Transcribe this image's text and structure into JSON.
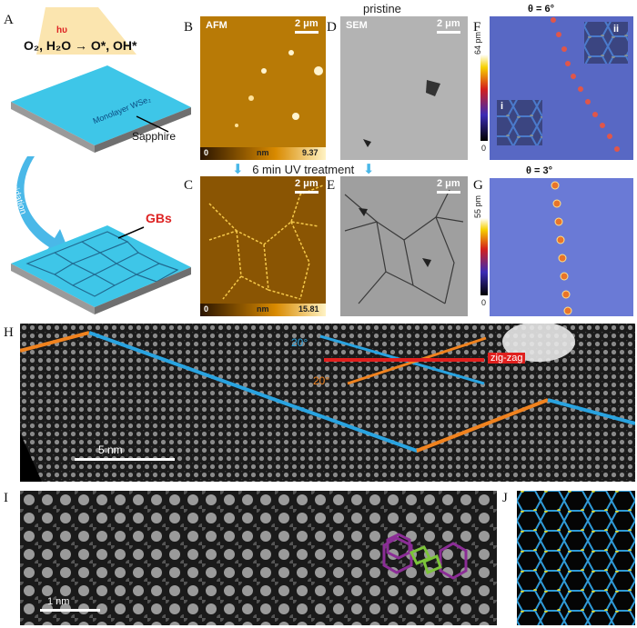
{
  "labels": {
    "A": "A",
    "B": "B",
    "C": "C",
    "D": "D",
    "E": "E",
    "F": "F",
    "G": "G",
    "H": "H",
    "I": "I",
    "J": "J"
  },
  "schematic": {
    "reaction_reactants": "O₂, H₂O",
    "light": "hυ",
    "reaction_products": "O*, OH*",
    "monolayer": "Monolayer WSe₂",
    "substrate": "Sapphire",
    "arrow_text": "Oxidation",
    "gb": "GBs"
  },
  "header": {
    "pristine": "pristine",
    "uv": "6 min UV treatment"
  },
  "afm_top": {
    "tag": "AFM",
    "scale": "2 μm",
    "cbar_min": "0",
    "cbar_unit": "nm",
    "cbar_max": "9.37"
  },
  "afm_bottom": {
    "scale": "2 μm",
    "cbar_min": "0",
    "cbar_unit": "nm",
    "cbar_max": "15.81"
  },
  "sem_top": {
    "tag": "SEM",
    "scale": "2 μm"
  },
  "sem_bottom": {
    "scale": "2 μm"
  },
  "stm_f": {
    "title": "θ = 6°",
    "cbar_max": "64 pm",
    "cbar_min": "0",
    "inset1": "i",
    "inset2": "ii"
  },
  "stm_g": {
    "title": "θ = 3°",
    "cbar_max": "55 pm",
    "cbar_min": "0"
  },
  "panel_h": {
    "angle1": "20°",
    "angle2": "20°",
    "zigzag": "zig-zag",
    "scale": "5 nm"
  },
  "panel_i": {
    "scale": "1 nm"
  },
  "colors": {
    "blue_line": "#29a3e0",
    "orange_line": "#f0821e",
    "red_line": "#e0201e",
    "purple": "#8b2d96",
    "green": "#7cc43a"
  }
}
